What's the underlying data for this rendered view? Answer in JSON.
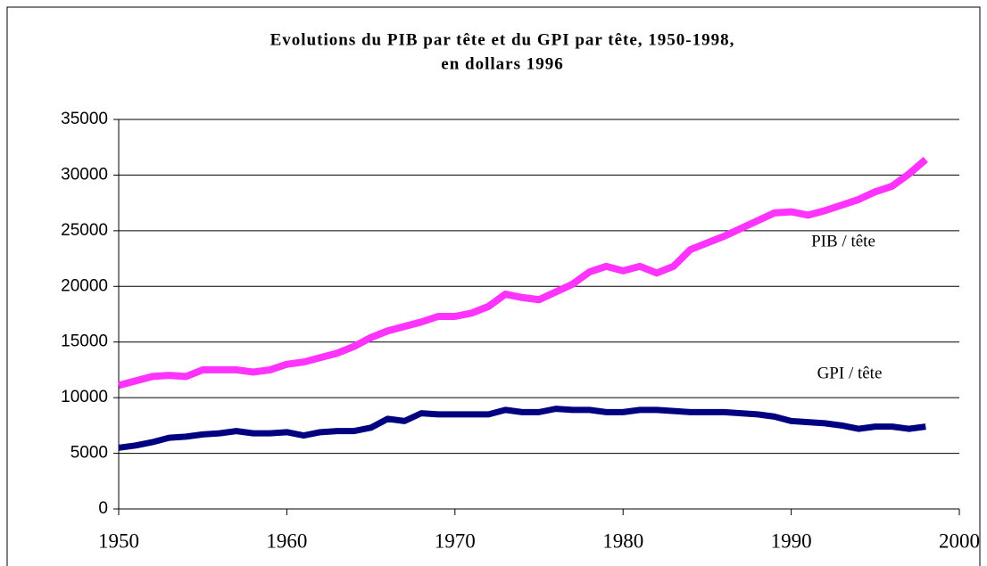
{
  "chart_data": {
    "type": "line",
    "title": [
      "Evolutions du PIB par tête et du GPI par tête,  1950-1998,",
      "en dollars 1996"
    ],
    "x": [
      1950,
      1951,
      1952,
      1953,
      1954,
      1955,
      1956,
      1957,
      1958,
      1959,
      1960,
      1961,
      1962,
      1963,
      1964,
      1965,
      1966,
      1967,
      1968,
      1969,
      1970,
      1971,
      1972,
      1973,
      1974,
      1975,
      1976,
      1977,
      1978,
      1979,
      1980,
      1981,
      1982,
      1983,
      1984,
      1985,
      1986,
      1987,
      1988,
      1989,
      1990,
      1991,
      1992,
      1993,
      1994,
      1995,
      1996,
      1997,
      1998
    ],
    "series": [
      {
        "name": "PIB / tête",
        "color": "#ff33ff",
        "values": [
          11100,
          11500,
          11900,
          12000,
          11900,
          12500,
          12500,
          12500,
          12300,
          12500,
          13000,
          13200,
          13600,
          14000,
          14600,
          15400,
          16000,
          16400,
          16800,
          17300,
          17300,
          17600,
          18200,
          19300,
          19000,
          18800,
          19500,
          20200,
          21300,
          21800,
          21400,
          21800,
          21200,
          21800,
          23300,
          23900,
          24500,
          25200,
          25900,
          26600,
          26700,
          26400,
          26800,
          27300,
          27800,
          28500,
          29000,
          30100,
          31400
        ]
      },
      {
        "name": "GPI / tête",
        "color": "#000080",
        "values": [
          5500,
          5700,
          6000,
          6400,
          6500,
          6700,
          6800,
          7000,
          6800,
          6800,
          6900,
          6600,
          6900,
          7000,
          7000,
          7300,
          8100,
          7900,
          8600,
          8500,
          8500,
          8500,
          8500,
          8900,
          8700,
          8700,
          9000,
          8900,
          8900,
          8700,
          8700,
          8900,
          8900,
          8800,
          8700,
          8700,
          8700,
          8600,
          8500,
          8300,
          7900,
          7800,
          7700,
          7500,
          7200,
          7400,
          7400,
          7200,
          7400
        ]
      }
    ],
    "xlim": [
      1950,
      2000
    ],
    "xticks": [
      1950,
      1960,
      1970,
      1980,
      1990,
      2000
    ],
    "ylim": [
      0,
      35000
    ],
    "yticks": [
      0,
      5000,
      10000,
      15000,
      20000,
      25000,
      30000,
      35000
    ],
    "grid": true
  }
}
